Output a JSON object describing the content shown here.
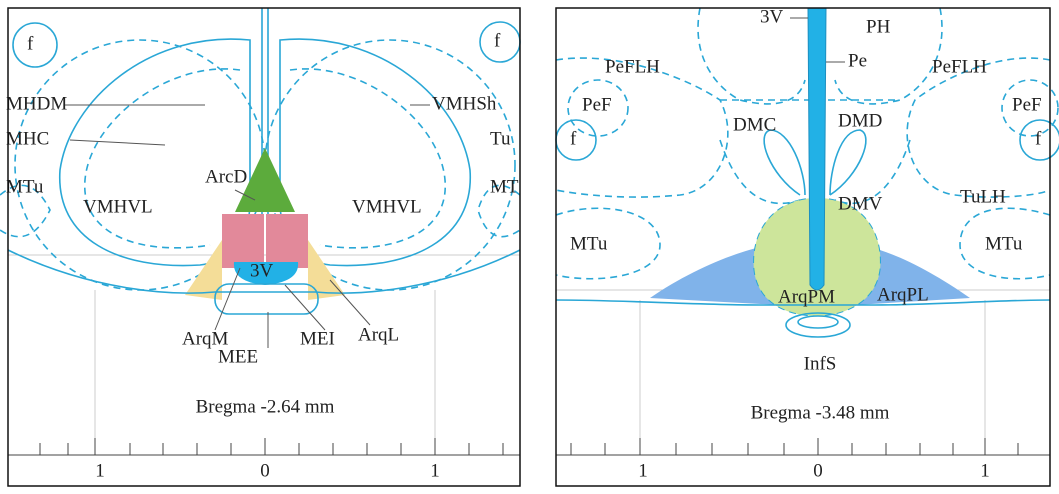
{
  "panels": [
    {
      "labels": [
        "f",
        "f",
        "MHDM",
        "VMHSh",
        "MHC",
        "Tu",
        "MTu",
        "ArcD",
        "VMHVL",
        "VMHVL",
        "MT",
        "3V",
        "ArqM",
        "MEE",
        "MEI",
        "ArqL"
      ],
      "bregma": "Bregma -2.64 mm",
      "scale": [
        "1",
        "0",
        "1"
      ]
    },
    {
      "labels": [
        "3V",
        "PH",
        "Pe",
        "PeFLH",
        "PeFLH",
        "PeF",
        "PeF",
        "DMC",
        "DMD",
        "f",
        "f",
        "DMV",
        "TuLH",
        "MTu",
        "MTu",
        "ArqPM",
        "ArqPL",
        "InfS"
      ],
      "bregma": "Bregma -3.48 mm",
      "scale": [
        "1",
        "0",
        "1"
      ]
    }
  ]
}
